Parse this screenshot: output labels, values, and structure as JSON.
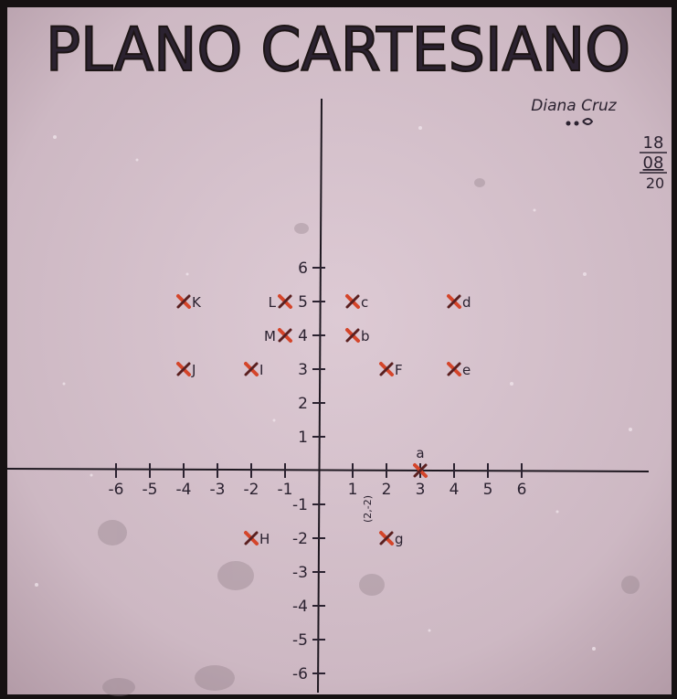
{
  "title": "PLANO CARTESIANO",
  "author": "Diana Cruz",
  "date": [
    "18",
    "08",
    "20"
  ],
  "x_ticks": [
    "-6",
    "-5",
    "-4",
    "-3",
    "-2",
    "-1",
    "1",
    "2",
    "3",
    "4",
    "5",
    "6"
  ],
  "y_ticks": [
    "6",
    "5",
    "4",
    "3",
    "2",
    "1",
    "-1",
    "-2",
    "-3",
    "-4",
    "-5",
    "-6"
  ],
  "points": [
    {
      "label": "K",
      "x": -4,
      "y": 5
    },
    {
      "label": "L",
      "x": -1,
      "y": 5
    },
    {
      "label": "c",
      "x": 1,
      "y": 5
    },
    {
      "label": "d",
      "x": 4,
      "y": 5
    },
    {
      "label": "M",
      "x": -1,
      "y": 4
    },
    {
      "label": "b",
      "x": 1,
      "y": 4
    },
    {
      "label": "J",
      "x": -4,
      "y": 3
    },
    {
      "label": "I",
      "x": -2,
      "y": 3
    },
    {
      "label": "F",
      "x": 2,
      "y": 3
    },
    {
      "label": "e",
      "x": 4,
      "y": 3
    },
    {
      "label": "a",
      "x": 3,
      "y": 0
    },
    {
      "label": "H",
      "x": -2,
      "y": -2
    },
    {
      "label": "g",
      "x": 2,
      "y": -2
    }
  ],
  "annotation_g": "(2,-2)",
  "colors": {
    "paper": "#d8c6cf",
    "ink": "#2b2230",
    "marker_red": "#d4452a",
    "marker_dark": "#5a1f1f"
  }
}
